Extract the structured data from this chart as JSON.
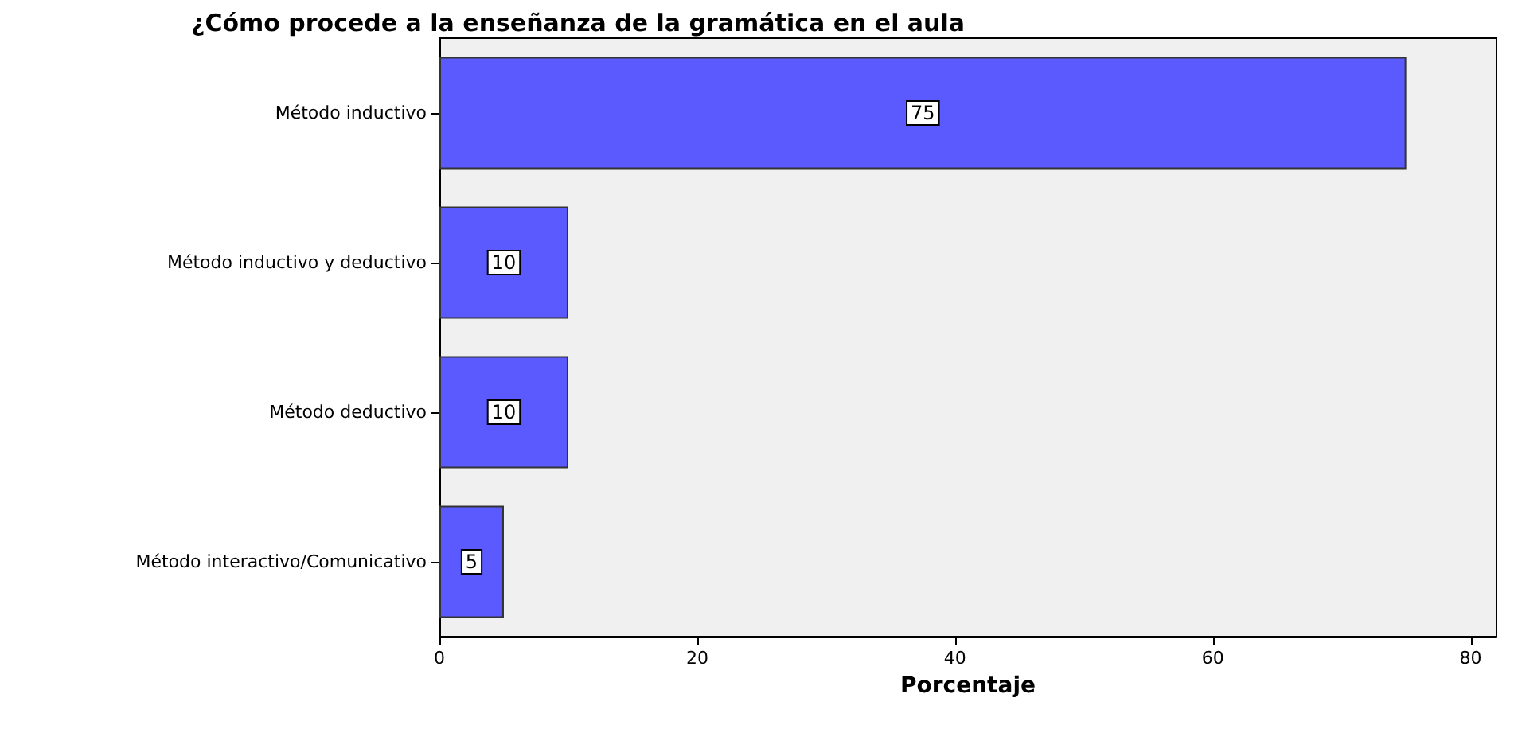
{
  "chart_data": {
    "type": "bar",
    "orientation": "horizontal",
    "title": "¿Cómo procede a la enseñanza de la gramática en el aula",
    "xlabel": "Porcentaje",
    "categories": [
      "Método inductivo",
      "Método inductivo y deductivo",
      "Método deductivo",
      "Método interactivo/Comunicativo"
    ],
    "values": [
      75,
      10,
      10,
      5
    ],
    "color": "#5a5aff",
    "data_labels": true,
    "xlim": [
      0,
      82
    ],
    "xticks": [
      0,
      20,
      40,
      60,
      80
    ],
    "grid": false
  }
}
